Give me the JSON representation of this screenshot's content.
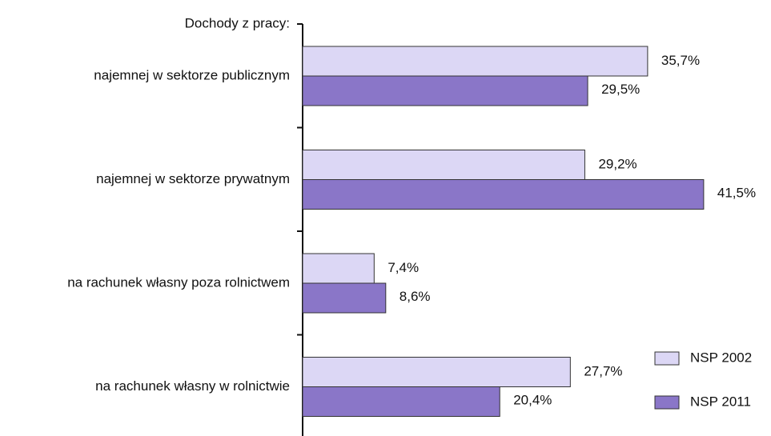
{
  "chart_data": {
    "type": "bar",
    "orientation": "horizontal",
    "title": "Dochody z pracy:",
    "categories": [
      "najemnej w sektorze publicznym",
      "najemnej w sektorze prywatnym",
      "na rachunek własny poza rolnictwem",
      "na rachunek własny w rolnictwie"
    ],
    "series": [
      {
        "name": "NSP 2002",
        "color": "#dcd7f5",
        "values": [
          35.7,
          29.2,
          7.4,
          27.7
        ],
        "value_labels": [
          "35,7%",
          "29,2%",
          "7,4%",
          "27,7%"
        ]
      },
      {
        "name": "NSP 2011",
        "color": "#8a76c8",
        "values": [
          29.5,
          41.5,
          8.6,
          20.4
        ],
        "value_labels": [
          "29,5%",
          "41,5%",
          "8,6%",
          "20,4%"
        ]
      }
    ],
    "legend": "bottom-right"
  }
}
